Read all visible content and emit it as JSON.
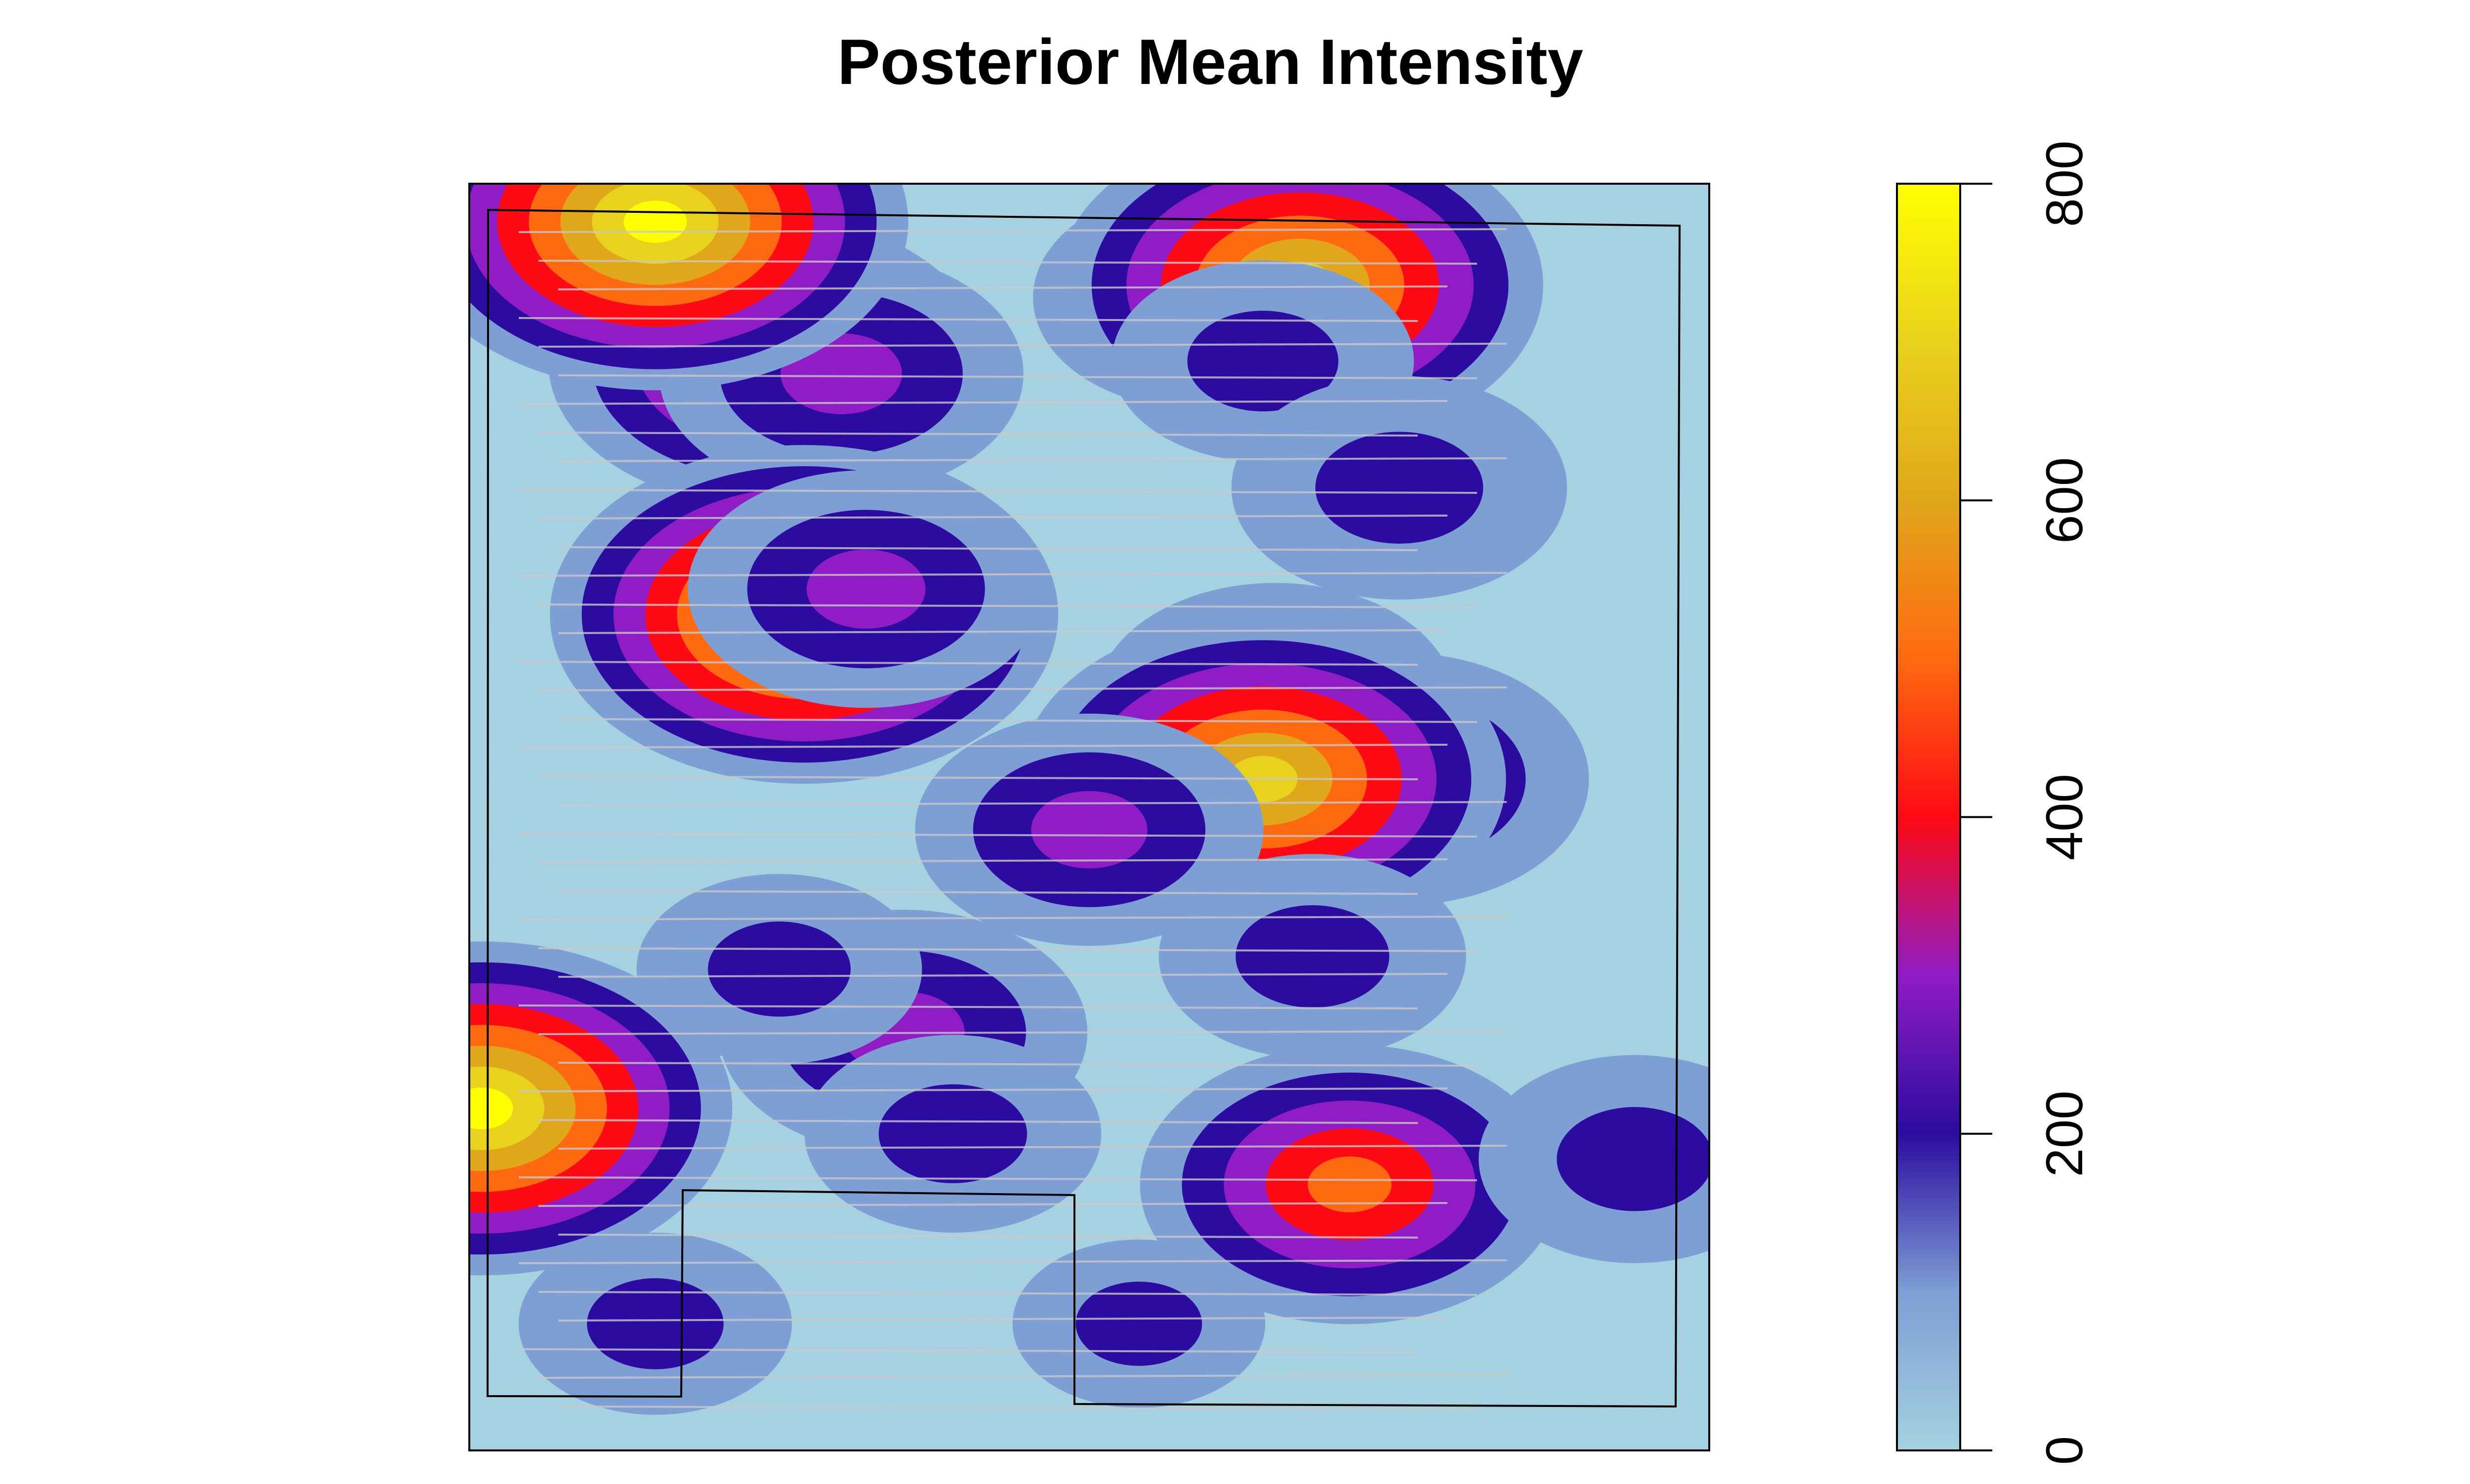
{
  "chart_data": {
    "type": "heatmap",
    "title": "Posterior Mean Intensity",
    "xlabel": "",
    "ylabel": "",
    "colorbar": {
      "min": 0,
      "max": 800,
      "ticks": [
        0,
        200,
        400,
        600,
        800
      ],
      "tick_labels": [
        "0",
        "200",
        "400",
        "600",
        "800"
      ],
      "placement": "right"
    },
    "colors": {
      "background": "#a5d1e0",
      "scale": [
        "#a5d1e0",
        "#7d9fd4",
        "#2c0ca0",
        "#8f1cc4",
        "#ff0a14",
        "#ff6a10",
        "#e0a71a",
        "#e9d21c",
        "#ffff00"
      ],
      "track_lines": "#c8c8c8",
      "boundary": "#000000"
    },
    "hotspots": [
      {
        "x": 0.24,
        "y": 0.86,
        "peak": 520
      },
      {
        "x": 0.3,
        "y": 0.85,
        "peak": 300
      },
      {
        "x": 0.15,
        "y": 0.97,
        "peak": 780
      },
      {
        "x": 0.59,
        "y": 0.91,
        "peak": 230
      },
      {
        "x": 0.65,
        "y": 0.95,
        "peak": 250
      },
      {
        "x": 0.67,
        "y": 0.92,
        "peak": 700
      },
      {
        "x": 0.64,
        "y": 0.86,
        "peak": 160
      },
      {
        "x": 0.75,
        "y": 0.76,
        "peak": 230
      },
      {
        "x": 0.3,
        "y": 0.64,
        "peak": 210
      },
      {
        "x": 0.27,
        "y": 0.66,
        "peak": 790
      },
      {
        "x": 0.32,
        "y": 0.68,
        "peak": 280
      },
      {
        "x": 0.65,
        "y": 0.59,
        "peak": 290
      },
      {
        "x": 0.75,
        "y": 0.53,
        "peak": 340
      },
      {
        "x": 0.64,
        "y": 0.53,
        "peak": 700
      },
      {
        "x": 0.5,
        "y": 0.49,
        "peak": 260
      },
      {
        "x": 0.68,
        "y": 0.39,
        "peak": 170
      },
      {
        "x": 0.71,
        "y": 0.21,
        "peak": 460
      },
      {
        "x": 0.35,
        "y": 0.33,
        "peak": 310
      },
      {
        "x": 0.25,
        "y": 0.38,
        "peak": 130
      },
      {
        "x": 0.01,
        "y": 0.27,
        "peak": 760
      },
      {
        "x": 0.39,
        "y": 0.25,
        "peak": 150
      },
      {
        "x": 0.15,
        "y": 0.1,
        "peak": 110
      },
      {
        "x": 0.94,
        "y": 0.23,
        "peak": 180
      },
      {
        "x": 0.54,
        "y": 0.1,
        "peak": 80
      }
    ]
  }
}
